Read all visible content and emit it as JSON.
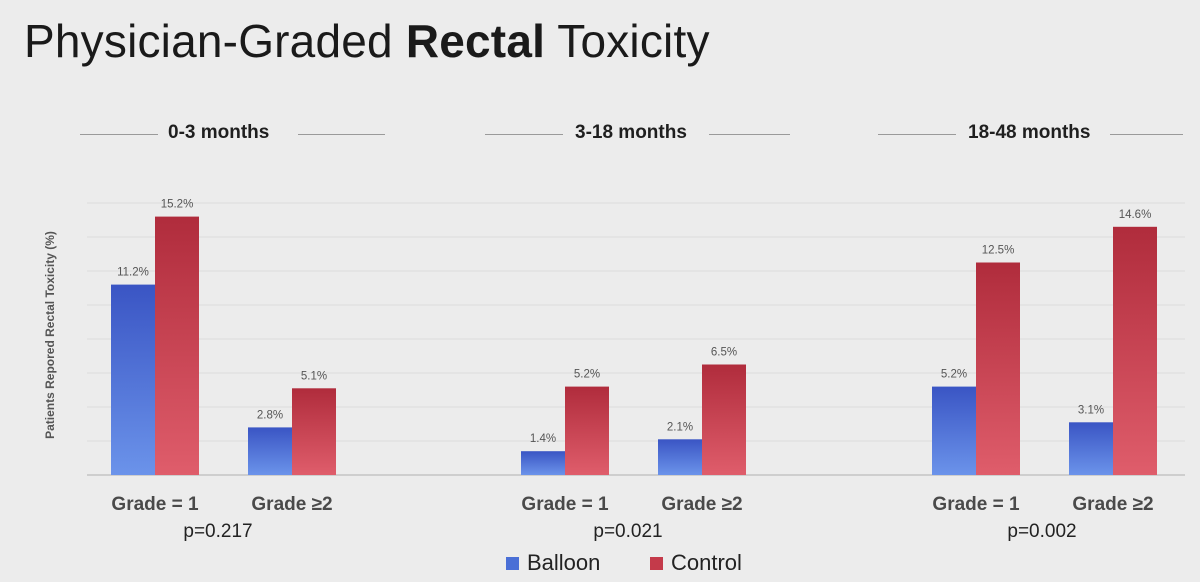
{
  "title_normal": "Physician-Graded ",
  "title_bold": "Rectal",
  "title_end": " Toxicity",
  "colors": {
    "balloon": "#4a6fd6",
    "control": "#c43a4a",
    "grid": "#dcdcdc",
    "axis": "#bdbdbd"
  },
  "chart_data": {
    "type": "bar",
    "ylabel": "Patients Repored Rectal Toxicity (%)",
    "ylim": [
      0,
      16
    ],
    "grid": true,
    "legend_position": "bottom",
    "series_names": [
      "Balloon",
      "Control"
    ],
    "panels": [
      {
        "title": "0-3 months",
        "p_value": "p=0.217",
        "categories": [
          "Grade = 1",
          "Grade ≥2"
        ],
        "series": [
          {
            "name": "Balloon",
            "values": [
              11.2,
              2.8
            ],
            "labels": [
              "11.2%",
              "2.8%"
            ]
          },
          {
            "name": "Control",
            "values": [
              15.2,
              5.1
            ],
            "labels": [
              "15.2%",
              "5.1%"
            ]
          }
        ]
      },
      {
        "title": "3-18 months",
        "p_value": "p=0.021",
        "categories": [
          "Grade = 1",
          "Grade ≥2"
        ],
        "series": [
          {
            "name": "Balloon",
            "values": [
              1.4,
              2.1
            ],
            "labels": [
              "1.4%",
              "2.1%"
            ]
          },
          {
            "name": "Control",
            "values": [
              5.2,
              6.5
            ],
            "labels": [
              "5.2%",
              "6.5%"
            ]
          }
        ]
      },
      {
        "title": "18-48 months",
        "p_value": "p=0.002",
        "categories": [
          "Grade = 1",
          "Grade ≥2"
        ],
        "series": [
          {
            "name": "Balloon",
            "values": [
              5.2,
              3.1
            ],
            "labels": [
              "5.2%",
              "3.1%"
            ]
          },
          {
            "name": "Control",
            "values": [
              12.5,
              14.6
            ],
            "labels": [
              "12.5%",
              "14.6%"
            ]
          }
        ]
      }
    ]
  }
}
